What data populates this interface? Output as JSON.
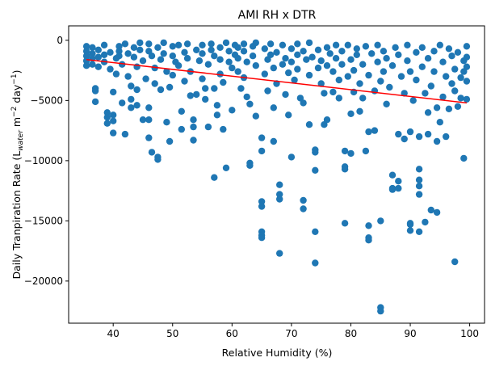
{
  "chart_data": {
    "type": "scatter",
    "title": "AMI RH x DTR",
    "xlabel": "Relative Humidity (%)",
    "ylabel": {
      "prefix": "Daily Tranpiration Rate (L",
      "sub": "water",
      "mid": " m",
      "sup1": "−2",
      "mid2": " day",
      "sup2": "−1",
      "suffix": ")"
    },
    "xlim": [
      32.5,
      102.5
    ],
    "ylim": [
      -23500,
      1200
    ],
    "xticks": [
      40,
      50,
      60,
      70,
      80,
      90,
      100
    ],
    "yticks": [
      0,
      -5000,
      -10000,
      -15000,
      -20000
    ],
    "ytick_labels": [
      "0",
      "−5000",
      "−10000",
      "−15000",
      "−20000"
    ],
    "grid": false,
    "legend": "none",
    "colors": {
      "points": "#1f77b4",
      "trend": "#ff0000"
    },
    "trend_line": {
      "x": [
        35.5,
        99.5
      ],
      "y": [
        -1600,
        -5200
      ]
    },
    "points": [
      [
        35.5,
        -500
      ],
      [
        35.5,
        -900
      ],
      [
        35.5,
        -1300
      ],
      [
        35.5,
        -1700
      ],
      [
        35.5,
        -2100
      ],
      [
        36.5,
        -600
      ],
      [
        36.5,
        -1100
      ],
      [
        36.5,
        -1500
      ],
      [
        36.5,
        -2000
      ],
      [
        37,
        -4000
      ],
      [
        37,
        -4200
      ],
      [
        37,
        -5100
      ],
      [
        37.5,
        -800
      ],
      [
        37.5,
        -1400
      ],
      [
        37.5,
        -2200
      ],
      [
        38.5,
        -400
      ],
      [
        38.5,
        -1200
      ],
      [
        38.5,
        -1800
      ],
      [
        39,
        -6000
      ],
      [
        39,
        -6400
      ],
      [
        39,
        -6900
      ],
      [
        39.5,
        -1000
      ],
      [
        39.5,
        -2400
      ],
      [
        40,
        -4300
      ],
      [
        40,
        -6200
      ],
      [
        40,
        -6700
      ],
      [
        40,
        -7700
      ],
      [
        40.5,
        -1500
      ],
      [
        40.5,
        -2800
      ],
      [
        41,
        -500
      ],
      [
        41,
        -900
      ],
      [
        41,
        -1300
      ],
      [
        41.5,
        -2000
      ],
      [
        41.5,
        -5200
      ],
      [
        42,
        -7800
      ],
      [
        42,
        -300
      ],
      [
        42.5,
        -1100
      ],
      [
        42.5,
        -3000
      ],
      [
        43,
        -3800
      ],
      [
        43,
        -4900
      ],
      [
        43,
        -5600
      ],
      [
        43.5,
        -600
      ],
      [
        43.5,
        -1400
      ],
      [
        44,
        -2200
      ],
      [
        44,
        -4100
      ],
      [
        44,
        -5400
      ],
      [
        44.5,
        -200
      ],
      [
        44.5,
        -800
      ],
      [
        45,
        -1700
      ],
      [
        45,
        -6600
      ],
      [
        45.5,
        -3200
      ],
      [
        46,
        -300
      ],
      [
        46,
        -900
      ],
      [
        46,
        -5600
      ],
      [
        46,
        -6600
      ],
      [
        46,
        -8100
      ],
      [
        46.5,
        -9300
      ],
      [
        46.5,
        -1300
      ],
      [
        47,
        -2300
      ],
      [
        47,
        -3600
      ],
      [
        47.5,
        -9700
      ],
      [
        47.5,
        -9900
      ],
      [
        47.5,
        -600
      ],
      [
        48,
        -1600
      ],
      [
        48,
        -4100
      ],
      [
        48.5,
        -200
      ],
      [
        48.5,
        -1100
      ],
      [
        49,
        -2600
      ],
      [
        49,
        -6800
      ],
      [
        49.5,
        -8400
      ],
      [
        49.5,
        -3900
      ],
      [
        50,
        -500
      ],
      [
        50,
        -1300
      ],
      [
        50,
        -2900
      ],
      [
        50.5,
        -1800
      ],
      [
        51,
        -400
      ],
      [
        51,
        -2100
      ],
      [
        51.5,
        -5900
      ],
      [
        51.5,
        -7400
      ],
      [
        52,
        -1000
      ],
      [
        52,
        -3400
      ],
      [
        52.5,
        -300
      ],
      [
        52.5,
        -1500
      ],
      [
        53,
        -4600
      ],
      [
        53,
        -2600
      ],
      [
        53.5,
        -6600
      ],
      [
        53.5,
        -7200
      ],
      [
        53.5,
        -8300
      ],
      [
        54,
        -4500
      ],
      [
        54,
        -800
      ],
      [
        54.5,
        -1700
      ],
      [
        55,
        -400
      ],
      [
        55,
        -1100
      ],
      [
        55,
        -3200
      ],
      [
        55.5,
        -4000
      ],
      [
        55.5,
        -4900
      ],
      [
        56,
        -2000
      ],
      [
        56,
        -7200
      ],
      [
        56.5,
        -300
      ],
      [
        56.5,
        -800
      ],
      [
        57,
        -1300
      ],
      [
        57,
        -4000
      ],
      [
        57,
        -11400
      ],
      [
        57.5,
        -5400
      ],
      [
        57.5,
        -6200
      ],
      [
        58,
        -600
      ],
      [
        58,
        -1600
      ],
      [
        58,
        -2800
      ],
      [
        58.5,
        -3500
      ],
      [
        58.5,
        -7400
      ],
      [
        59,
        -10600
      ],
      [
        59,
        -200
      ],
      [
        59.5,
        -900
      ],
      [
        59.5,
        -1800
      ],
      [
        60,
        -2300
      ],
      [
        60,
        -5800
      ],
      [
        60.5,
        -400
      ],
      [
        60.5,
        -1200
      ],
      [
        61,
        -600
      ],
      [
        61,
        -1500
      ],
      [
        61,
        -2600
      ],
      [
        61.5,
        -4000
      ],
      [
        62,
        -300
      ],
      [
        62,
        -900
      ],
      [
        62,
        -3100
      ],
      [
        62.5,
        -1800
      ],
      [
        62.5,
        -4700
      ],
      [
        63,
        -10200
      ],
      [
        63,
        -10400
      ],
      [
        63,
        -5300
      ],
      [
        63.5,
        -500
      ],
      [
        63.5,
        -1300
      ],
      [
        64,
        -2100
      ],
      [
        64,
        -6300
      ],
      [
        64,
        -200
      ],
      [
        65,
        -8100
      ],
      [
        65,
        -9200
      ],
      [
        65,
        -13400
      ],
      [
        65,
        -13800
      ],
      [
        65,
        -15900
      ],
      [
        65,
        -16200
      ],
      [
        65,
        -16400
      ],
      [
        65.5,
        -2800
      ],
      [
        65.5,
        -700
      ],
      [
        66,
        -1600
      ],
      [
        66,
        -4200
      ],
      [
        66.5,
        -300
      ],
      [
        66.5,
        -1200
      ],
      [
        67,
        -2300
      ],
      [
        67,
        -5600
      ],
      [
        67,
        -8400
      ],
      [
        67.5,
        -3600
      ],
      [
        67.5,
        -1000
      ],
      [
        68,
        -12000
      ],
      [
        68,
        -12800
      ],
      [
        68,
        -13200
      ],
      [
        68,
        -17700
      ],
      [
        68.5,
        -2000
      ],
      [
        68.5,
        -400
      ],
      [
        69,
        -4500
      ],
      [
        69,
        -1500
      ],
      [
        69.5,
        -6200
      ],
      [
        69.5,
        -2700
      ],
      [
        70,
        -9700
      ],
      [
        70,
        -700
      ],
      [
        70,
        -1800
      ],
      [
        70.5,
        -3300
      ],
      [
        71,
        -1200
      ],
      [
        71,
        -300
      ],
      [
        71,
        -2400
      ],
      [
        71.5,
        -4800
      ],
      [
        72,
        -13300
      ],
      [
        72,
        -14000
      ],
      [
        72,
        -5200
      ],
      [
        72,
        -900
      ],
      [
        72.5,
        -1600
      ],
      [
        73,
        -7000
      ],
      [
        73,
        -2900
      ],
      [
        73,
        -200
      ],
      [
        73.5,
        -1400
      ],
      [
        74,
        -9100
      ],
      [
        74,
        -9300
      ],
      [
        74,
        -15900
      ],
      [
        74,
        -18500
      ],
      [
        74,
        -10800
      ],
      [
        74.5,
        -2300
      ],
      [
        74.5,
        -800
      ],
      [
        75,
        -3600
      ],
      [
        75,
        -1700
      ],
      [
        75.5,
        -4400
      ],
      [
        75.5,
        -7000
      ],
      [
        76,
        -600
      ],
      [
        76,
        -2100
      ],
      [
        76,
        -6600
      ],
      [
        76.5,
        -1100
      ],
      [
        77,
        -4300
      ],
      [
        77,
        -2600
      ],
      [
        77.5,
        -400
      ],
      [
        77.5,
        -1500
      ],
      [
        78,
        -3300
      ],
      [
        78,
        -4800
      ],
      [
        78.5,
        -900
      ],
      [
        78.5,
        -2000
      ],
      [
        79,
        -10500
      ],
      [
        79,
        -10700
      ],
      [
        79,
        -15200
      ],
      [
        79,
        -9200
      ],
      [
        79.5,
        -3000
      ],
      [
        79.5,
        -400
      ],
      [
        80,
        -6100
      ],
      [
        80,
        -1600
      ],
      [
        80,
        -9400
      ],
      [
        80.5,
        -2500
      ],
      [
        80.5,
        -4300
      ],
      [
        81,
        -700
      ],
      [
        81,
        -1200
      ],
      [
        81.5,
        -5900
      ],
      [
        81.5,
        -3600
      ],
      [
        82,
        -2000
      ],
      [
        82,
        -4800
      ],
      [
        82.5,
        -9200
      ],
      [
        82.5,
        -500
      ],
      [
        83,
        -16400
      ],
      [
        83,
        -16600
      ],
      [
        83,
        -15400
      ],
      [
        83,
        -7600
      ],
      [
        83,
        -2900
      ],
      [
        83.5,
        -1100
      ],
      [
        84,
        -7500
      ],
      [
        84,
        -4200
      ],
      [
        84.5,
        -400
      ],
      [
        84.5,
        -1800
      ],
      [
        85,
        -22200
      ],
      [
        85,
        -22500
      ],
      [
        85,
        -15000
      ],
      [
        85,
        -3400
      ],
      [
        85.5,
        -2600
      ],
      [
        85.5,
        -900
      ],
      [
        86,
        -5300
      ],
      [
        86,
        -1500
      ],
      [
        86.5,
        -3900
      ],
      [
        87,
        -11200
      ],
      [
        87,
        -12300
      ],
      [
        87,
        -12400
      ],
      [
        87,
        -2100
      ],
      [
        87.5,
        -600
      ],
      [
        88,
        -11700
      ],
      [
        88,
        -12300
      ],
      [
        88,
        -7800
      ],
      [
        88,
        -1200
      ],
      [
        88.5,
        -3000
      ],
      [
        89,
        -8200
      ],
      [
        89,
        -4400
      ],
      [
        89.5,
        -1700
      ],
      [
        89.5,
        -400
      ],
      [
        90,
        -15200
      ],
      [
        90,
        -15800
      ],
      [
        90,
        -15300
      ],
      [
        90,
        -7600
      ],
      [
        90,
        -2600
      ],
      [
        90.5,
        -5000
      ],
      [
        91,
        -1000
      ],
      [
        91,
        -3300
      ],
      [
        91.5,
        -10700
      ],
      [
        91.5,
        -11600
      ],
      [
        91.5,
        -12100
      ],
      [
        91.5,
        -12800
      ],
      [
        91.5,
        -15900
      ],
      [
        91.5,
        -8000
      ],
      [
        92,
        -2200
      ],
      [
        92,
        -600
      ],
      [
        92.5,
        -15100
      ],
      [
        92.5,
        -4400
      ],
      [
        93,
        -7800
      ],
      [
        93,
        -6000
      ],
      [
        93,
        -1500
      ],
      [
        93.5,
        -14100
      ],
      [
        93.5,
        -3800
      ],
      [
        94,
        -900
      ],
      [
        94,
        -2600
      ],
      [
        94.5,
        -14300
      ],
      [
        94.5,
        -8400
      ],
      [
        94.5,
        -5600
      ],
      [
        95,
        -6800
      ],
      [
        95,
        -400
      ],
      [
        95.5,
        -1800
      ],
      [
        95.5,
        -4700
      ],
      [
        96,
        -3000
      ],
      [
        96,
        -8000
      ],
      [
        96.5,
        -5700
      ],
      [
        96.5,
        -700
      ],
      [
        97,
        -1300
      ],
      [
        97,
        -3600
      ],
      [
        97.5,
        -18400
      ],
      [
        97.5,
        -2400
      ],
      [
        97.5,
        -4200
      ],
      [
        98,
        -5500
      ],
      [
        98,
        -1000
      ],
      [
        98.5,
        -3100
      ],
      [
        98.5,
        -4800
      ],
      [
        99,
        -9800
      ],
      [
        99,
        -1700
      ],
      [
        99,
        -2600
      ],
      [
        99.5,
        -3400
      ],
      [
        99.5,
        -4900
      ],
      [
        99.5,
        -500
      ],
      [
        99.5,
        -1400
      ],
      [
        99.5,
        -2200
      ]
    ]
  }
}
